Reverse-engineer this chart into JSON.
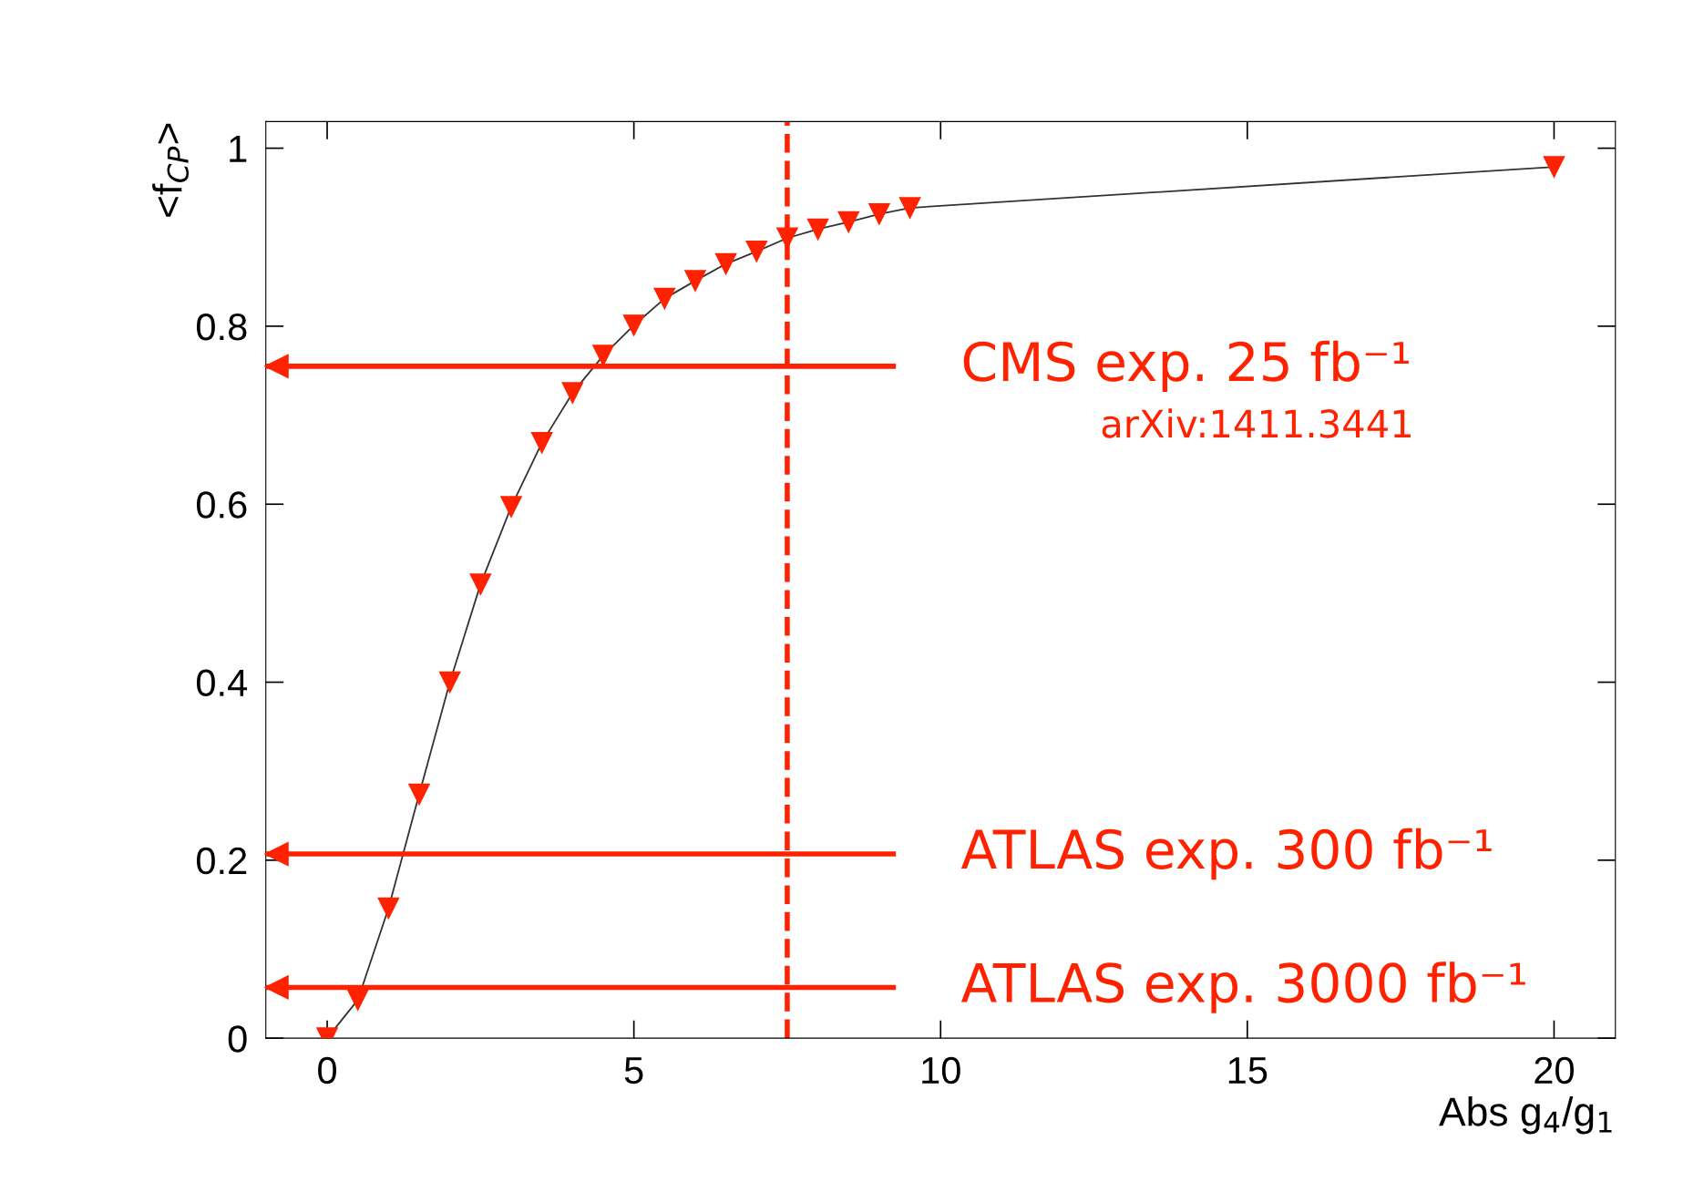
{
  "chart_data": {
    "type": "line",
    "xlabel": "Abs g$_{4}$/g$_{1}$",
    "ylabel": "<f$_{CP}$>",
    "x": [
      0,
      0.5,
      1,
      1.5,
      2,
      2.5,
      3,
      3.5,
      4,
      4.5,
      5,
      5.5,
      6,
      6.5,
      7,
      7.5,
      8,
      8.5,
      9,
      9.5,
      20
    ],
    "series": [
      {
        "color": "#333333",
        "colors": [
          "#ff2200",
          "#ff2200",
          "#ff2200",
          "#ff2200",
          "#ff2200",
          "#ff2200",
          "#ff2200",
          "#ff2200",
          "#ff2200",
          "#ff2200",
          "#ff2200",
          "#ff2200",
          "#ff2200",
          "#ff2200",
          "#ff2200",
          "#ff2200",
          "#ff2200",
          "#ff2200",
          "#ff2200",
          "#ff2200",
          "#ff2200"
        ],
        "values": [
          0,
          0.043,
          0.146,
          0.274,
          0.4,
          0.51,
          0.597,
          0.669,
          0.725,
          0.767,
          0.801,
          0.831,
          0.851,
          0.87,
          0.884,
          0.899,
          0.909,
          0.917,
          0.926,
          0.933,
          0.979
        ]
      }
    ],
    "marker": "triangle",
    "line_style": "solid",
    "grid": false,
    "legend": false,
    "xlim": [
      -1,
      21
    ],
    "ylim": [
      0,
      1.03
    ],
    "xticks": [
      0,
      5,
      10,
      15,
      20
    ],
    "yticks": [
      0,
      0.2,
      0.4,
      0.6,
      0.8,
      1
    ],
    "ref_lines": [
      {
        "axis": "x",
        "value": 7.5,
        "color": "#ff2200",
        "line_style": "dashed"
      },
      {
        "axis": "y",
        "value": 0.755,
        "label": "CMS exp. 25 fb⁻¹",
        "color": "#ff2200"
      },
      {
        "axis": "y",
        "value": 0.207,
        "label": "ATLAS exp. 300 fb⁻¹",
        "color": "#ff2200"
      },
      {
        "axis": "y",
        "value": 0.057,
        "label": "ATLAS exp. 3000 fb⁻¹",
        "color": "#ff2200"
      }
    ],
    "annotations": [
      "arXiv:1411.3441"
    ]
  }
}
